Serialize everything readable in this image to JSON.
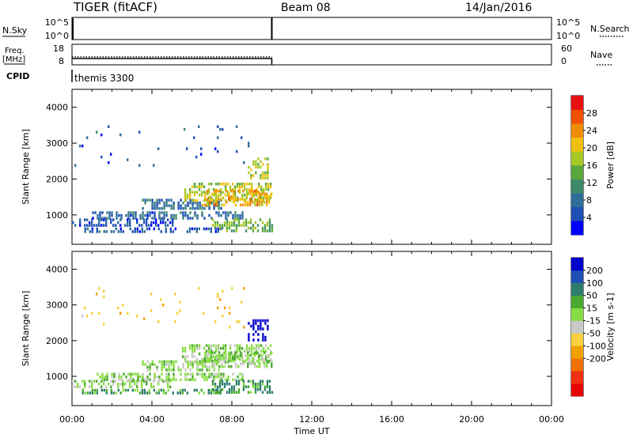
{
  "header": {
    "title": "TIGER (fitACF)",
    "beam": "Beam 08",
    "date": "14/Jan/2016",
    "cpid_name": "themis 3300"
  },
  "side_labels": {
    "nsky": "N.Sky",
    "nsearch": "N.Search",
    "freq_top": "Freq.",
    "freq_unit": "[MHz]",
    "nave": "Nave",
    "cpid": "CPID"
  },
  "top_panels": {
    "noise": {
      "left_ticks": [
        "10^5",
        "10^0"
      ],
      "right_ticks": [
        "10^5",
        "10^0"
      ]
    },
    "freq": {
      "left_ticks": [
        "18",
        "8"
      ],
      "right_ticks": [
        "60",
        "0"
      ]
    }
  },
  "time_axis": {
    "label": "Time UT",
    "tick_hours": [
      0,
      4,
      8,
      12,
      16,
      20,
      24
    ],
    "tick_labels": [
      "00:00",
      "04:00",
      "08:00",
      "12:00",
      "16:00",
      "20:00",
      "00:00"
    ],
    "range_hours": [
      0,
      24
    ],
    "data_end_hours": 10
  },
  "chart_data": [
    {
      "type": "heatmap",
      "title": "",
      "xlabel": "",
      "ylabel": "Slant Range [km]",
      "xlim_hours": [
        0,
        24
      ],
      "ylim": [
        180,
        4500
      ],
      "yticks": [
        1000,
        2000,
        3000,
        4000
      ],
      "colorbar": {
        "label": "Power [dB]",
        "tick_values": [
          4,
          8,
          12,
          16,
          20,
          24,
          28
        ],
        "tick_labels": [
          "4",
          "8",
          "12",
          "16",
          "20",
          "24",
          "28"
        ],
        "range": [
          0,
          32
        ],
        "colors": [
          "#0000ff",
          "#1e4fb4",
          "#2e6e9a",
          "#3c8a6a",
          "#5aa83c",
          "#a8c828",
          "#f0c010",
          "#f08c00",
          "#f05000",
          "#e81010"
        ]
      },
      "echo_regions": [
        {
          "t": [
            0,
            5.0
          ],
          "r": [
            700,
            900
          ],
          "value": 5
        },
        {
          "t": [
            0.5,
            7.5
          ],
          "r": [
            500,
            650
          ],
          "value": 6
        },
        {
          "t": [
            1.0,
            8.5
          ],
          "r": [
            880,
            1100
          ],
          "value": 7
        },
        {
          "t": [
            3.5,
            7.5
          ],
          "r": [
            1150,
            1450
          ],
          "value": 8
        },
        {
          "t": [
            5.5,
            10.0
          ],
          "r": [
            1400,
            1900
          ],
          "value": 18
        },
        {
          "t": [
            6.5,
            10.0
          ],
          "r": [
            1300,
            1700
          ],
          "value": 22
        },
        {
          "t": [
            7.0,
            10.0
          ],
          "r": [
            560,
            900
          ],
          "value": 15
        },
        {
          "t": [
            8.8,
            9.8
          ],
          "r": [
            2000,
            2600
          ],
          "value": 18
        },
        {
          "t": [
            0.0,
            9.0
          ],
          "r": [
            2400,
            3500
          ],
          "value": 6
        }
      ]
    },
    {
      "type": "heatmap",
      "title": "",
      "xlabel": "Time UT",
      "ylabel": "Slant Range [km]",
      "xlim_hours": [
        0,
        24
      ],
      "ylim": [
        180,
        4500
      ],
      "yticks": [
        1000,
        2000,
        3000,
        4000
      ],
      "colorbar": {
        "label": "Velocity [m s-1]",
        "tick_values": [
          200,
          100,
          50,
          15,
          -15,
          -50,
          -100,
          -200
        ],
        "tick_labels": [
          "200",
          "100",
          "50",
          "15",
          "-15",
          "-50",
          "-100",
          "-200"
        ],
        "colors": [
          "#0000cc",
          "#1e4fb4",
          "#2e7e6e",
          "#4aa82e",
          "#88dd44",
          "#c8c8c8",
          "#f8d040",
          "#f0a000",
          "#f07000",
          "#f03010",
          "#e80000"
        ]
      },
      "echo_regions": [
        {
          "t": [
            0,
            5.0
          ],
          "r": [
            700,
            900
          ],
          "value": 0
        },
        {
          "t": [
            0.5,
            7.5
          ],
          "r": [
            500,
            650
          ],
          "value": 30
        },
        {
          "t": [
            1.0,
            8.5
          ],
          "r": [
            880,
            1100
          ],
          "value": 0
        },
        {
          "t": [
            3.5,
            7.5
          ],
          "r": [
            1150,
            1450
          ],
          "value": 0
        },
        {
          "t": [
            5.5,
            10.0
          ],
          "r": [
            1400,
            1900
          ],
          "value": 0
        },
        {
          "t": [
            6.5,
            10.0
          ],
          "r": [
            1300,
            1700
          ],
          "value": 0
        },
        {
          "t": [
            7.0,
            10.0
          ],
          "r": [
            560,
            900
          ],
          "value": 40
        },
        {
          "t": [
            8.8,
            9.8
          ],
          "r": [
            2000,
            2600
          ],
          "value": 180
        },
        {
          "t": [
            0.0,
            9.0
          ],
          "r": [
            2400,
            3500
          ],
          "value": -60
        }
      ]
    }
  ]
}
